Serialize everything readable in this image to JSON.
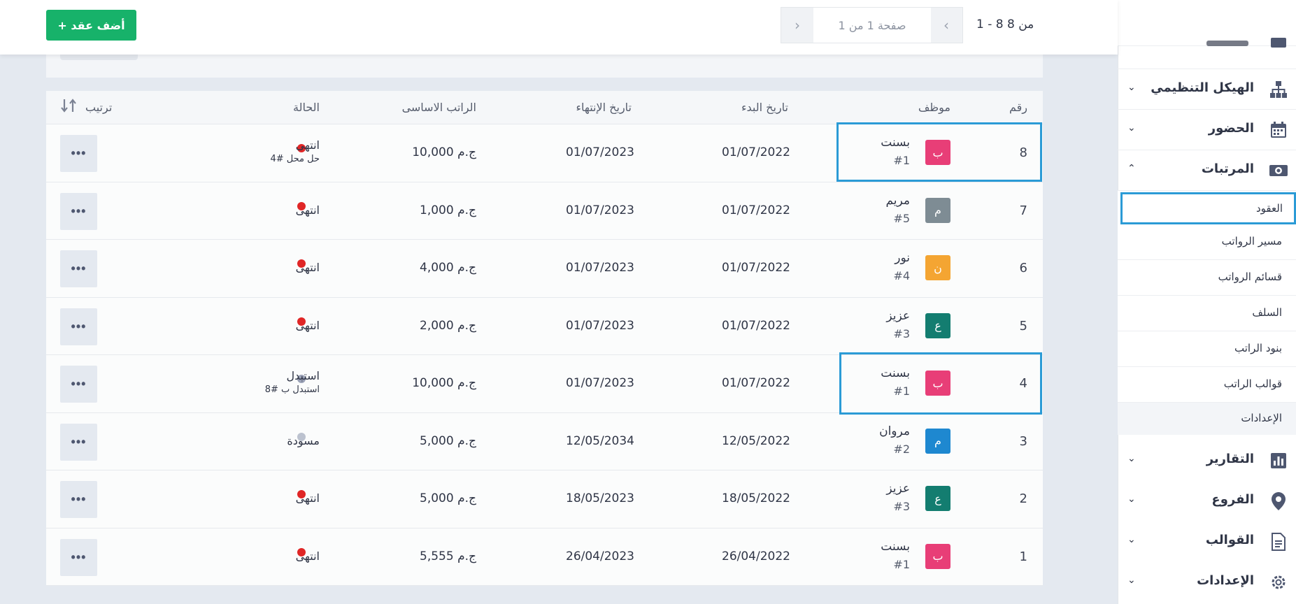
{
  "sidebar": {
    "items_top": [
      {
        "label": "الهيكل التنظيمي",
        "icon": "org-chart-icon"
      },
      {
        "label": "الحضور",
        "icon": "calendar-icon"
      },
      {
        "label": "المرتبات",
        "icon": "money-icon"
      }
    ],
    "submenu": [
      "العقود",
      "مسير الرواتب",
      "قسائم الرواتب",
      "السلف",
      "بنود الراتب",
      "قوالب الراتب",
      "الإعدادات"
    ],
    "items_bottom": [
      {
        "label": "التقارير",
        "icon": "bar-chart-icon"
      },
      {
        "label": "الفروع",
        "icon": "location-pin-icon"
      },
      {
        "label": "القوالب",
        "icon": "document-icon"
      },
      {
        "label": "الإعدادات",
        "icon": "gear-icon"
      }
    ]
  },
  "toolbar": {
    "add_label": "+ أضف عقد",
    "page_value": "صفحة 1 من 1",
    "range": "1 - 8 من 8"
  },
  "table": {
    "headers": {
      "num": "رقم",
      "employee": "موظف",
      "start": "تاريخ البدء",
      "end": "تاريخ الإنتهاء",
      "salary": "الراتب الاساسى",
      "status": "الحالة",
      "sort": "ترتيب"
    },
    "rows": [
      {
        "num": "8",
        "initial": "ب",
        "color": "#e83e77",
        "name": "بسنت",
        "code": "#1",
        "start": "01/07/2022",
        "end": "01/07/2023",
        "salary": "10,000 ج.م",
        "status": "انتهى",
        "status_color": "#e02626",
        "note": "حل محل #4"
      },
      {
        "num": "7",
        "initial": "م",
        "color": "#7e8c94",
        "name": "مريم",
        "code": "#5",
        "start": "01/07/2022",
        "end": "01/07/2023",
        "salary": "1,000 ج.م",
        "status": "انتهى",
        "status_color": "#e02626",
        "note": ""
      },
      {
        "num": "6",
        "initial": "ن",
        "color": "#f4a532",
        "name": "نور",
        "code": "#4",
        "start": "01/07/2022",
        "end": "01/07/2023",
        "salary": "4,000 ج.م",
        "status": "انتهى",
        "status_color": "#e02626",
        "note": ""
      },
      {
        "num": "5",
        "initial": "ع",
        "color": "#137d70",
        "name": "عزيز",
        "code": "#3",
        "start": "01/07/2022",
        "end": "01/07/2023",
        "salary": "2,000 ج.م",
        "status": "انتهى",
        "status_color": "#e02626",
        "note": ""
      },
      {
        "num": "4",
        "initial": "ب",
        "color": "#e83e77",
        "name": "بسنت",
        "code": "#1",
        "start": "01/07/2022",
        "end": "01/07/2023",
        "salary": "10,000 ج.م",
        "status": "استبدل",
        "status_color": "#9aa1b6",
        "note": "استبدل ب #8"
      },
      {
        "num": "3",
        "initial": "م",
        "color": "#1e88d0",
        "name": "مروان",
        "code": "#2",
        "start": "12/05/2022",
        "end": "12/05/2034",
        "salary": "5,000 ج.م",
        "status": "مسودة",
        "status_color": "#bcc2cf",
        "note": ""
      },
      {
        "num": "2",
        "initial": "ع",
        "color": "#137d70",
        "name": "عزيز",
        "code": "#3",
        "start": "18/05/2022",
        "end": "18/05/2023",
        "salary": "5,000 ج.م",
        "status": "انتهى",
        "status_color": "#e02626",
        "note": ""
      },
      {
        "num": "1",
        "initial": "ب",
        "color": "#e83e77",
        "name": "بسنت",
        "code": "#1",
        "start": "26/04/2022",
        "end": "26/04/2023",
        "salary": "5,555 ج.م",
        "status": "انتهى",
        "status_color": "#e02626",
        "note": ""
      }
    ]
  }
}
